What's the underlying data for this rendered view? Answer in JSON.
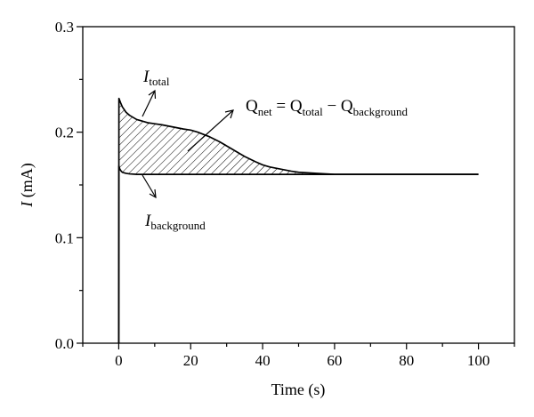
{
  "chart_data": {
    "type": "line",
    "title": "",
    "xlabel": "Time (s)",
    "ylabel_italic": "I",
    "ylabel_rest": " (mA)",
    "xlim": [
      -10,
      110
    ],
    "ylim": [
      0,
      0.3
    ],
    "x_ticks": [
      0,
      20,
      40,
      60,
      80,
      100
    ],
    "x_tick_labels": [
      "0",
      "20",
      "40",
      "60",
      "80",
      "100"
    ],
    "y_ticks": [
      0,
      0.1,
      0.2,
      0.3
    ],
    "y_tick_labels": [
      "0.0",
      "0.1",
      "0.2",
      "0.3"
    ],
    "grid": false,
    "series": [
      {
        "name": "I_total",
        "x": [
          0,
          0.05,
          0.5,
          1,
          2,
          3,
          4,
          5,
          6,
          8,
          10,
          12,
          15,
          18,
          20,
          22,
          25,
          28,
          30,
          32,
          35,
          38,
          40,
          42,
          45,
          48,
          50,
          55,
          60,
          70,
          80,
          90,
          100
        ],
        "y": [
          0,
          0.232,
          0.228,
          0.224,
          0.219,
          0.216,
          0.214,
          0.212,
          0.211,
          0.209,
          0.208,
          0.207,
          0.205,
          0.203,
          0.202,
          0.2,
          0.196,
          0.191,
          0.187,
          0.183,
          0.177,
          0.172,
          0.169,
          0.167,
          0.165,
          0.163,
          0.162,
          0.161,
          0.16,
          0.16,
          0.16,
          0.16,
          0.16
        ]
      },
      {
        "name": "I_background",
        "x": [
          0,
          0.05,
          0.3,
          0.7,
          1,
          2,
          3,
          5,
          10,
          20,
          30,
          40,
          50,
          60,
          70,
          80,
          90,
          100
        ],
        "y": [
          0,
          0.168,
          0.165,
          0.163,
          0.162,
          0.161,
          0.1605,
          0.16,
          0.16,
          0.16,
          0.16,
          0.16,
          0.16,
          0.16,
          0.16,
          0.16,
          0.16,
          0.16
        ]
      }
    ],
    "annotations": {
      "itotal": {
        "main": "I",
        "sub": "total"
      },
      "ibackground": {
        "main": "I",
        "sub": "background"
      },
      "qnet": {
        "q1": "Q",
        "q1_sub": "net",
        "eq": " = ",
        "q2": "Q",
        "q2_sub": "total",
        "minus": " − ",
        "q3": "Q",
        "q3_sub": "background"
      }
    }
  }
}
